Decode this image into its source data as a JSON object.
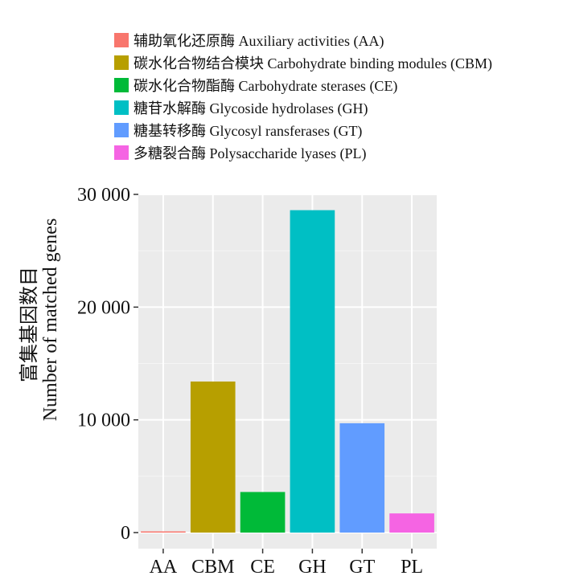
{
  "legend": [
    {
      "label": "辅助氧化还原酶  Auxiliary activities (AA)",
      "color": "#F8766D"
    },
    {
      "label": "碳水化合物结合模块  Carbohydrate binding modules (CBM)",
      "color": "#B79F00"
    },
    {
      "label": "碳水化合物酯酶  Carbohydrate sterases (CE)",
      "color": "#00BA38"
    },
    {
      "label": "糖苷水解酶  Glycoside hydrolases (GH)",
      "color": "#00BFC4"
    },
    {
      "label": "糖基转移酶  Glycosyl ransferases (GT)",
      "color": "#619CFF"
    },
    {
      "label": "多糖裂合酶  Polysaccharide lyases (PL)",
      "color": "#F564E3"
    }
  ],
  "chart_data": {
    "type": "bar",
    "categories": [
      "AA",
      "CBM",
      "CE",
      "GH",
      "GT",
      "PL"
    ],
    "values": [
      80,
      13400,
      3600,
      28600,
      9700,
      1700
    ],
    "colors": [
      "#F8766D",
      "#B79F00",
      "#00BA38",
      "#00BFC4",
      "#619CFF",
      "#F564E3"
    ],
    "ylabel_cn": "富集基因数目",
    "ylabel_en": "Number of matched genes",
    "xlabel": "",
    "ylim": [
      0,
      30000
    ],
    "yticks": [
      0,
      10000,
      20000,
      30000
    ],
    "ytick_labels": [
      "0",
      "10 000",
      "20 000",
      "30 000"
    ],
    "grid": true,
    "panel_background": "#EBEBEB",
    "legend_position": "top"
  }
}
